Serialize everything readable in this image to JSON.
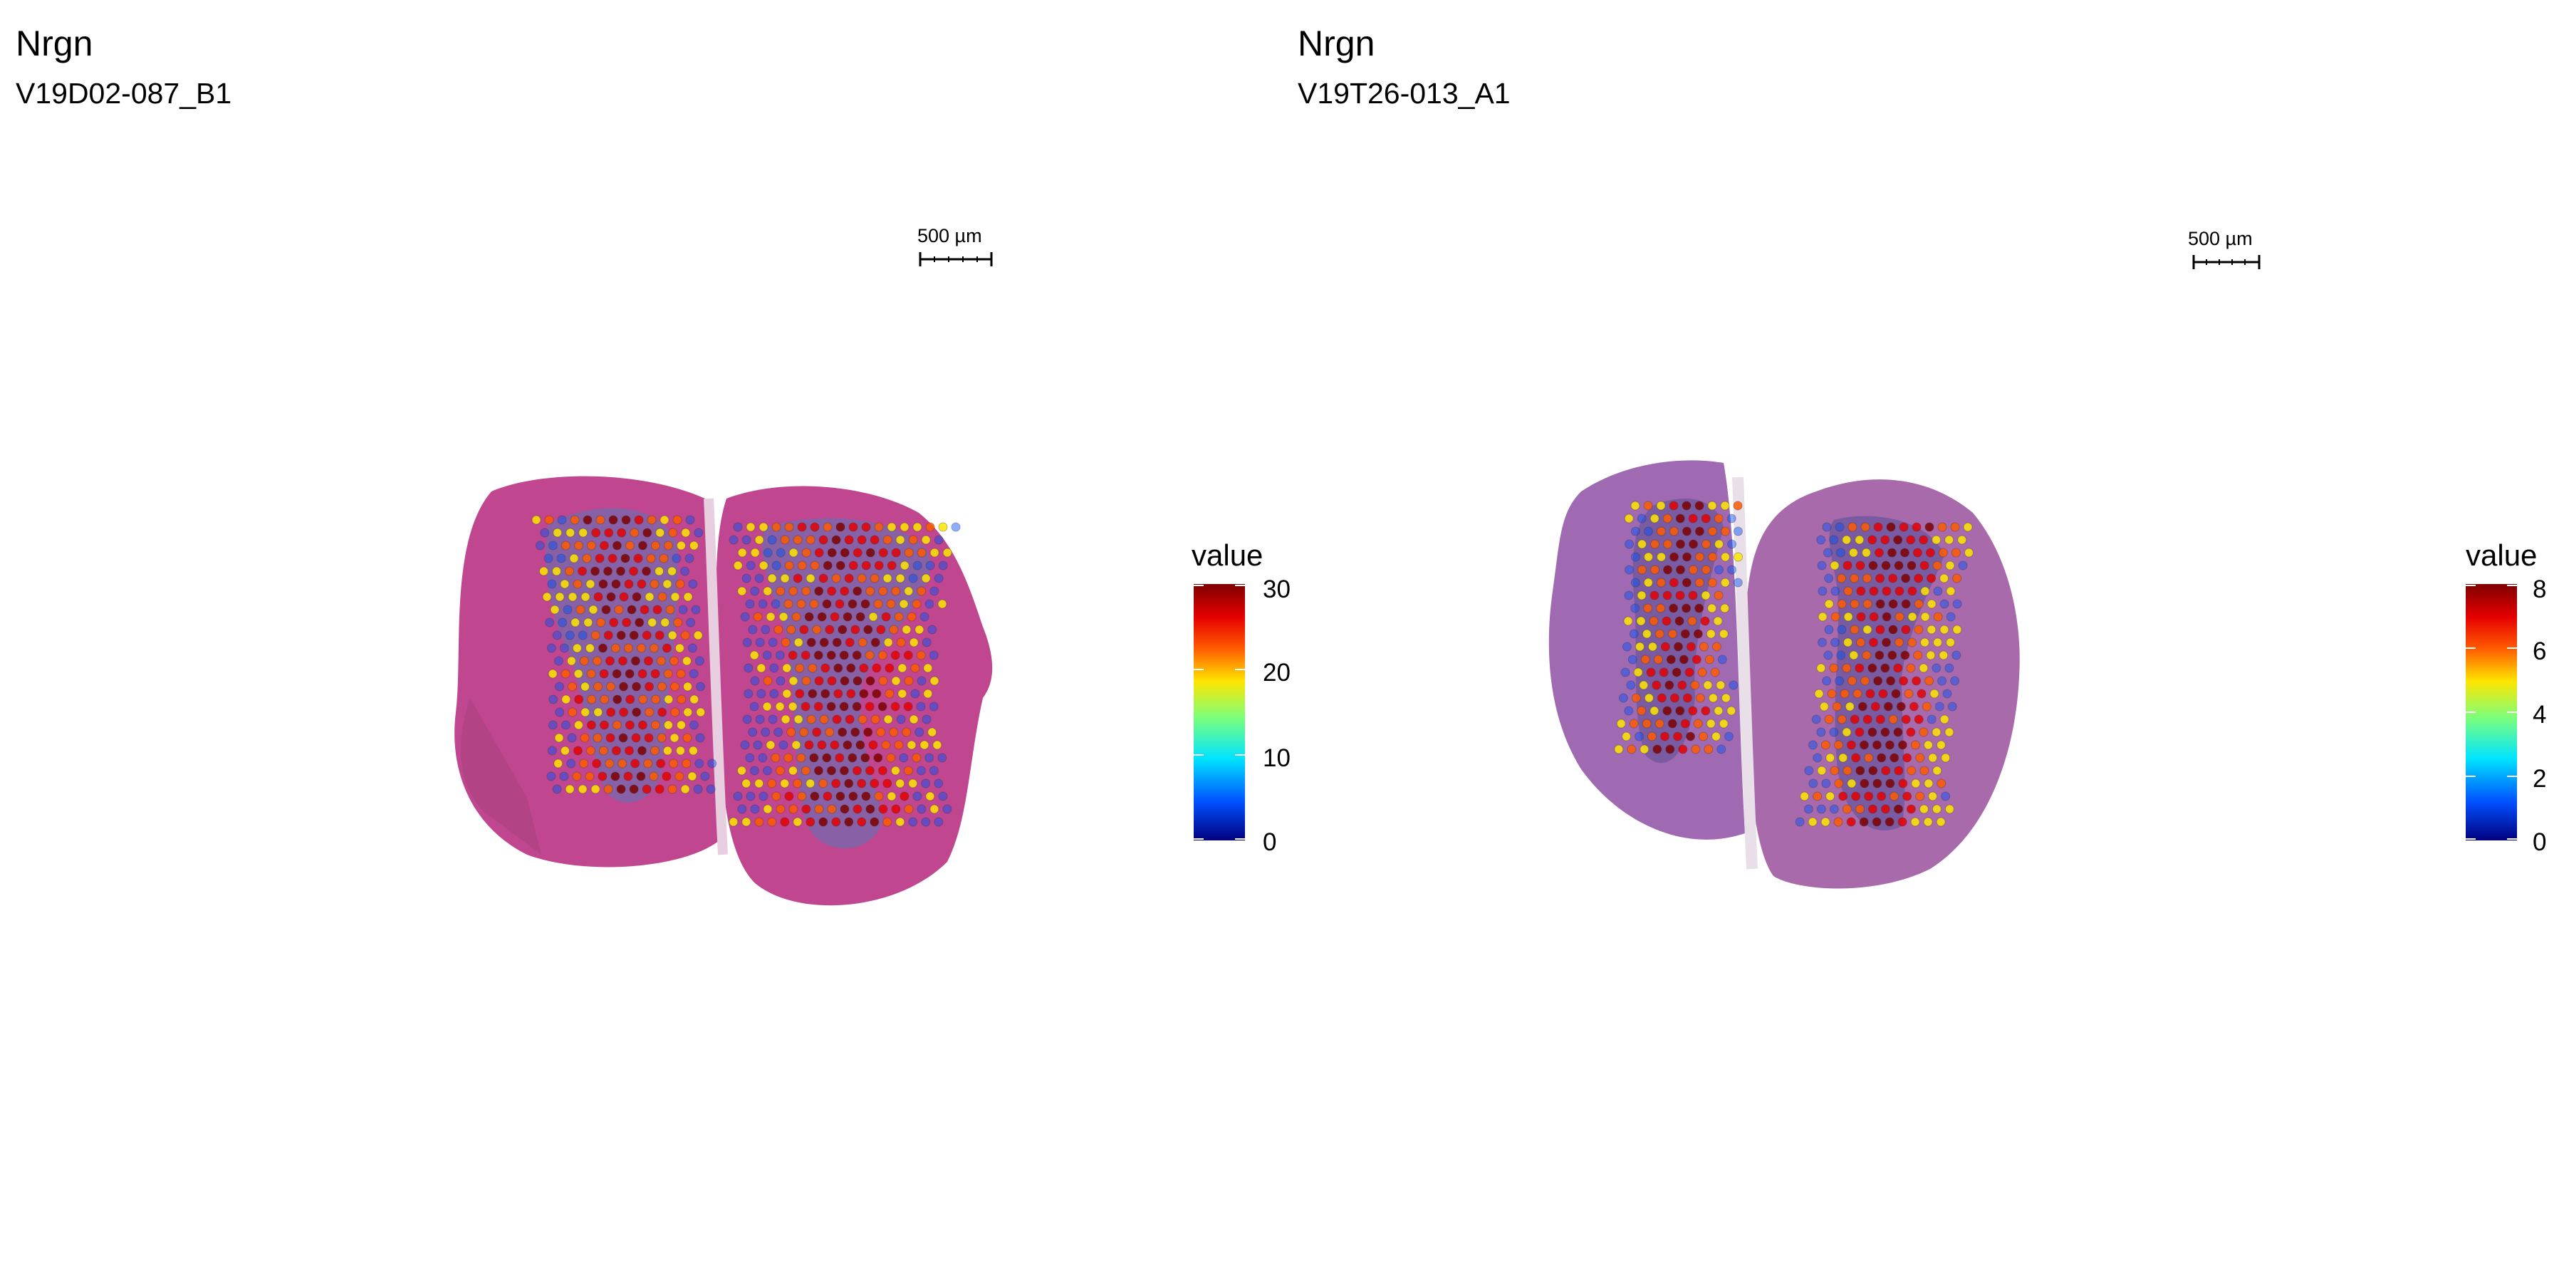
{
  "panels": [
    {
      "title": "Nrgn",
      "subtitle": "V19D02-087_B1",
      "scalebar_label": "500 µm",
      "legend": {
        "title": "value",
        "ticks": [
          "30",
          "20",
          "10",
          "0"
        ],
        "min": 0,
        "max": 30
      }
    },
    {
      "title": "Nrgn",
      "subtitle": "V19T26-013_A1",
      "scalebar_label": "500 µm",
      "legend": {
        "title": "value",
        "ticks": [
          "8",
          "6",
          "4",
          "2",
          "0"
        ],
        "min": 0,
        "max": 8
      }
    }
  ],
  "chart_data": {
    "type": "scatter",
    "description_kind": "spatial transcriptomics spot plot over H&E tissue",
    "colormap": [
      "#00007f",
      "#0050ff",
      "#00e5ff",
      "#7dff7a",
      "#ffe600",
      "#ff5a00",
      "#e60000",
      "#7f0000"
    ],
    "panels": [
      {
        "title": "Nrgn",
        "subtitle": "V19D02-087_B1",
        "color_range": [
          0,
          30
        ]
      },
      {
        "title": "Nrgn",
        "subtitle": "V19T26-013_A1",
        "color_range": [
          0,
          8
        ]
      }
    ]
  }
}
